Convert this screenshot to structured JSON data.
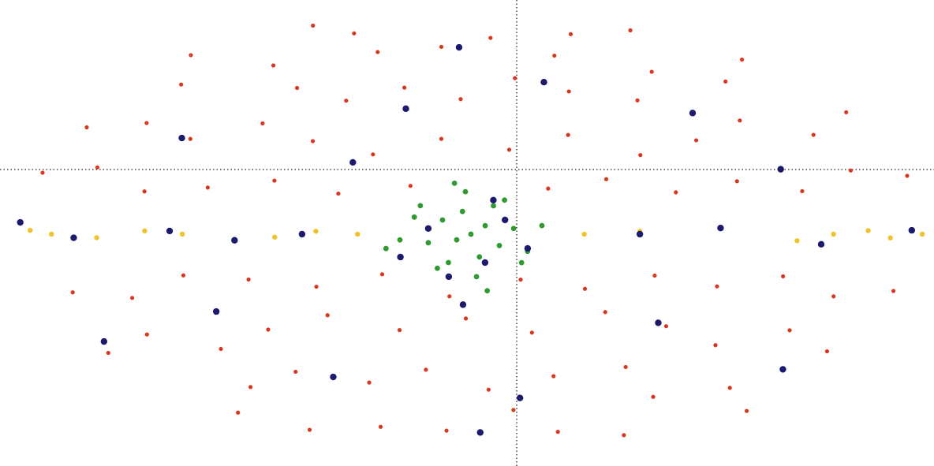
{
  "chart_data": {
    "type": "scatter",
    "projection": "hammer",
    "xlim": [
      180,
      -180
    ],
    "ylim": [
      -90,
      90
    ],
    "series": [
      {
        "color": "#d9371e",
        "marker_size": 2.6,
        "x": [
          -150,
          -100,
          -60,
          -20,
          25,
          70,
          115,
          160,
          -165,
          -135,
          -105,
          -80,
          -50,
          -25,
          5,
          35,
          60,
          90,
          120,
          150,
          175,
          -172,
          -145,
          -118,
          -92,
          -66,
          -40,
          -15,
          12,
          38,
          64,
          90,
          116,
          142,
          168,
          -175,
          -150,
          -125,
          -100,
          -75,
          -50,
          -28,
          22,
          48,
          73,
          98,
          123,
          148,
          172,
          -168,
          -142,
          -117,
          -92,
          -67,
          -42,
          -18,
          8,
          32,
          57,
          82,
          107,
          132,
          157,
          -160,
          -133,
          -106,
          -79,
          -52,
          -25,
          2,
          29,
          56,
          83,
          110,
          137,
          164,
          -170,
          -138,
          -106,
          -74,
          -42,
          -10,
          22,
          54,
          86,
          118,
          150,
          -140,
          -85,
          -30,
          25,
          80,
          135
        ],
        "y": [
          68,
          72,
          65,
          74,
          70,
          66,
          71,
          69,
          52,
          48,
          55,
          46,
          51,
          57,
          49,
          53,
          47,
          50,
          56,
          45,
          52,
          33,
          29,
          36,
          31,
          27,
          35,
          30,
          34,
          28,
          32,
          37,
          30,
          33,
          29,
          15,
          18,
          13,
          17,
          14,
          19,
          16,
          17,
          14,
          18,
          15,
          13,
          19,
          16,
          -15,
          -18,
          -13,
          -17,
          -14,
          -19,
          -16,
          -22,
          -14,
          -18,
          -15,
          -13,
          -19,
          -16,
          -33,
          -29,
          -36,
          -31,
          -27,
          -35,
          -30,
          -34,
          -28,
          -32,
          -37,
          -30,
          -33,
          -52,
          -48,
          -55,
          -46,
          -51,
          -57,
          -49,
          -53,
          -47,
          -50,
          -56,
          -68,
          -72,
          -65,
          -74,
          -70,
          -66
        ]
      },
      {
        "color": "#f2c22a",
        "marker_size": 3.2,
        "x": [
          -175,
          -160,
          -150,
          -135,
          -120,
          -60,
          -40,
          40,
          55,
          70,
          105,
          120,
          140,
          160,
          170
        ],
        "y": [
          0,
          -1,
          1,
          0,
          -2,
          1,
          0,
          0,
          1,
          -1,
          0,
          1,
          -1,
          0,
          1
        ]
      },
      {
        "color": "#2e9a30",
        "marker_size": 3.4,
        "x": [
          0,
          -5,
          5,
          10,
          -10,
          3,
          -3,
          15,
          -15,
          8,
          -8,
          20,
          -20,
          2,
          -2,
          12,
          -12,
          25,
          -25,
          6,
          30,
          -6,
          18,
          -18
        ],
        "y": [
          0,
          3,
          -2,
          5,
          -4,
          8,
          -8,
          -3,
          2,
          -10,
          10,
          6,
          -6,
          15,
          -15,
          -12,
          12,
          -2,
          3,
          18,
          -5,
          -20,
          10,
          -10
        ]
      },
      {
        "color": "#1c1a6e",
        "marker_size": 4.2,
        "x": [
          -5,
          8,
          -12,
          15,
          3,
          -20,
          25,
          -8,
          -60,
          -90,
          -130,
          -170,
          60,
          85,
          110,
          150,
          175,
          -100,
          -40,
          30,
          120,
          -150,
          70,
          -30,
          100,
          -120,
          45,
          160,
          -75,
          10,
          -10
        ],
        "y": [
          -10,
          -15,
          5,
          2,
          -25,
          -5,
          -8,
          12,
          0,
          2,
          -3,
          1,
          0,
          -2,
          1,
          -1,
          3,
          40,
          55,
          45,
          30,
          -40,
          -50,
          -60,
          -25,
          20,
          25,
          -30,
          -30,
          70,
          -75
        ]
      }
    ]
  }
}
